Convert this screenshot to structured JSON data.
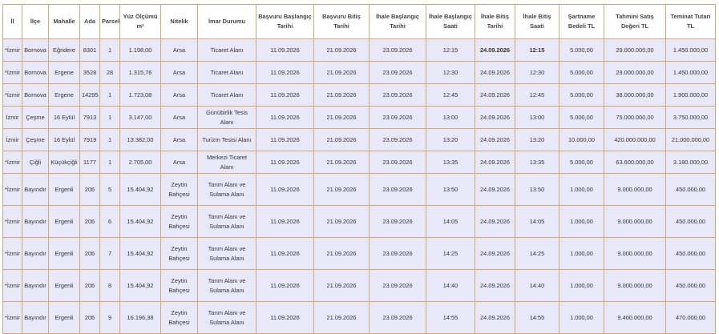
{
  "table": {
    "header": [
      "İl",
      "İlçe",
      "Mahalle",
      "Ada",
      "Parsel",
      "Yüz Ölçümü m²",
      "Nitelik",
      "İmar Durumu",
      "Başvuru Başlangıç Tarihi",
      "Başvuru Bitiş Tarihi",
      "İhale Başlangıç Tarihi",
      "İhale Başlangıç Saati",
      "İhale Bitiş Tarihi",
      "İhale Bitiş Saati",
      "Şartname Bedeli TL",
      "Tahmini Satış Değeri TL",
      "Teminat Tutarı TL"
    ],
    "rows": [
      [
        "*İzmir",
        "Bornova",
        "Eğridere",
        "8301",
        "1",
        "1.198,00",
        "Arsa",
        "Ticaret Alanı",
        "11.09.2026",
        "21.09.2026",
        "23.09.2026",
        "12:15",
        "24.09.2026",
        "12:15",
        "5.000,00",
        "29.000.000,00",
        "1.450.000,00"
      ],
      [
        "*İzmir",
        "Bornova",
        "Ergene",
        "3528",
        "28",
        "1.315,76",
        "Arsa",
        "Ticaret Alanı",
        "11.09.2026",
        "21.09.2026",
        "23.09.2026",
        "12:30",
        "24.09.2026",
        "12:30",
        "5.000,00",
        "29.000.000,00",
        "1.450.000,00"
      ],
      [
        "*İzmir",
        "Bornova",
        "Ergene",
        "14295",
        "1",
        "1.723,08",
        "Arsa",
        "Ticaret Alanı",
        "11.09.2026",
        "21.09.2026",
        "23.09.2026",
        "12:45",
        "24.09.2026",
        "12:45",
        "5.000,00",
        "38.000.000,00",
        "1.900.000,00"
      ],
      [
        "İzmir",
        "Çeşme",
        "16 Eylül",
        "7913",
        "1",
        "3.147,00",
        "Arsa",
        "Günübirlik Tesis Alanı",
        "11.09.2026",
        "21.09.2026",
        "23.09.2026",
        "13:00",
        "24.09.2026",
        "13:00",
        "5.000,00",
        "75.000.000,00",
        "3.750.000,00"
      ],
      [
        "İzmir",
        "Çeşme",
        "16 Eylül",
        "7919",
        "1",
        "13.382,00",
        "Arsa",
        "Turizm Tesisi Alanı",
        "11.09.2026",
        "21.09.2026",
        "23.09.2026",
        "13:20",
        "24.09.2026",
        "13:20",
        "10.000,00",
        "420.000.000,00",
        "21.000.000,00"
      ],
      [
        "*İzmir",
        "Çiğli",
        "Küçükçiğli",
        "1177",
        "1",
        "2.705,00",
        "Arsa",
        "Merkezi Ticaret Alanı",
        "11.09.2026",
        "21.09.2026",
        "23.09.2026",
        "13:35",
        "24.09.2026",
        "13:35",
        "5.000,00",
        "63.600.000,00",
        "3.180.000,00"
      ],
      [
        "*İzmir",
        "Bayındır",
        "Ergenli",
        "206",
        "5",
        "15.404,92",
        "Zeytin Bahçesi",
        "Tarım Alanı ve Sulama Alanı",
        "11.09.2026",
        "21.09.2026",
        "23.09.2026",
        "13:50",
        "24.09.2026",
        "13:50",
        "1.000,00",
        "9.000.000,00",
        "450.000,00"
      ],
      [
        "*İzmir",
        "Bayındır",
        "Ergenli",
        "206",
        "6",
        "15.404,92",
        "Zeytin Bahçesi",
        "Tarım Alanı ve Sulama Alanı",
        "11.09.2026",
        "21.09.2026",
        "23.09.2026",
        "14:05",
        "24.09.2026",
        "14:05",
        "1.000,00",
        "9.000.000,00",
        "450.000,00"
      ],
      [
        "*İzmir",
        "Bayındır",
        "Ergenli",
        "206",
        "7",
        "15.404,92",
        "Zeytin Bahçesi",
        "Tarım Alanı ve Sulama Alanı",
        "11.09.2026",
        "21.09.2026",
        "23.09.2026",
        "14:25",
        "24.09.2026",
        "14:25",
        "1.000,00",
        "9.000.000,00",
        "450.000,00"
      ],
      [
        "*İzmir",
        "Bayındır",
        "Ergenli",
        "206",
        "8",
        "15.404,92",
        "Zeytin Bahçesi",
        "Tarım Alanı ve Sulama Alanı",
        "11.09.2026",
        "21.09.2026",
        "23.09.2026",
        "14:40",
        "24.09.2026",
        "14:40",
        "1.000,00",
        "9.000.000,00",
        "450.000,00"
      ],
      [
        "*İzmir",
        "Bayındır",
        "Ergenli",
        "206",
        "9",
        "16.196,38",
        "Zeytin Bahçesi",
        "Tarım Alanı ve Sulama Alanı",
        "11.09.2026",
        "21.09.2026",
        "23.09.2026",
        "14:55",
        "24.09.2026",
        "14:55",
        "1.000,00",
        "9.400.000,00",
        "470.000,00"
      ]
    ]
  }
}
